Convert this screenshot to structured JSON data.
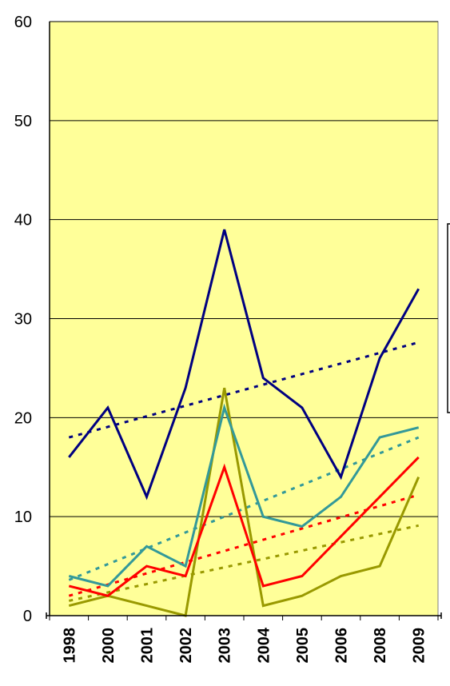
{
  "chart_data": {
    "type": "line",
    "categories": [
      "1998",
      "2000",
      "2001",
      "2002",
      "2003",
      "2004",
      "2005",
      "2006",
      "2008",
      "2009"
    ],
    "ylim": [
      0,
      60
    ],
    "yticks": [
      0,
      10,
      20,
      30,
      40,
      50,
      60
    ],
    "grid": true,
    "plot_background": "#ffff99",
    "series": [
      {
        "color": "#000080",
        "values": [
          16,
          21,
          12,
          23,
          39,
          24,
          21,
          14,
          26,
          33
        ],
        "trend": [
          18.0,
          27.6
        ]
      },
      {
        "color": "#339999",
        "values": [
          4,
          3,
          7,
          5,
          21,
          10,
          9,
          12,
          18,
          19
        ],
        "trend": [
          3.6,
          18.0
        ]
      },
      {
        "color": "#ff0000",
        "values": [
          3,
          2,
          5,
          4,
          15,
          3,
          4,
          8,
          12,
          16
        ],
        "trend": [
          2.0,
          12.2
        ]
      },
      {
        "color": "#999900",
        "values": [
          1,
          2,
          1,
          0,
          23,
          1,
          2,
          4,
          5,
          14
        ],
        "trend": [
          1.5,
          9.1
        ]
      }
    ]
  }
}
